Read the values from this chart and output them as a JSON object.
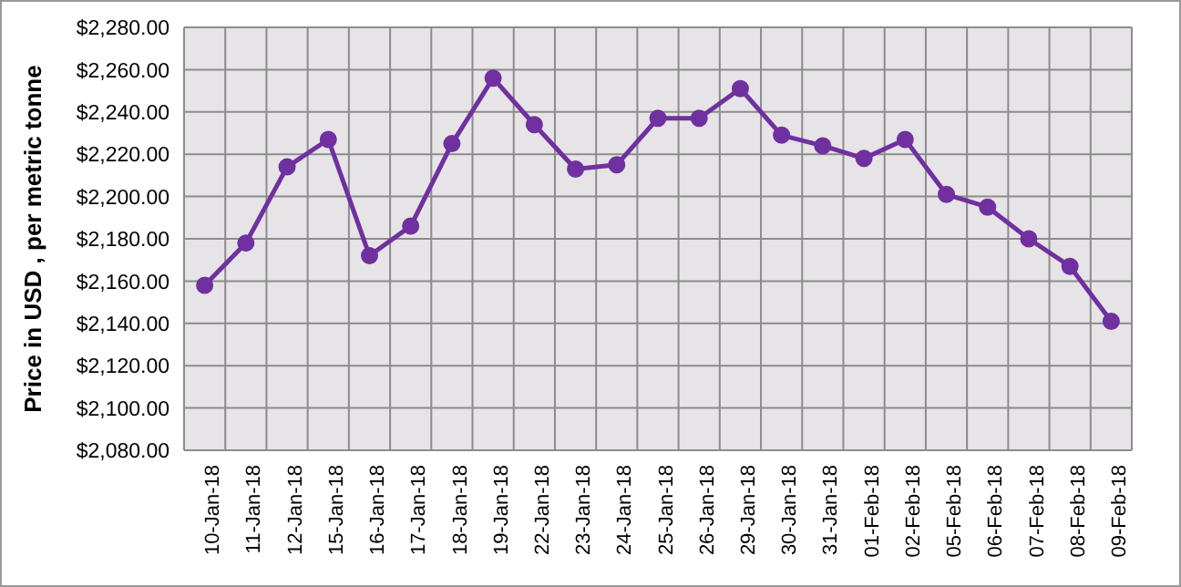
{
  "chart_data": {
    "type": "line",
    "ylabel": "Price in USD , per metric tonne",
    "categories": [
      "10-Jan-18",
      "11-Jan-18",
      "12-Jan-18",
      "15-Jan-18",
      "16-Jan-18",
      "17-Jan-18",
      "18-Jan-18",
      "19-Jan-18",
      "22-Jan-18",
      "23-Jan-18",
      "24-Jan-18",
      "25-Jan-18",
      "26-Jan-18",
      "29-Jan-18",
      "30-Jan-18",
      "31-Jan-18",
      "01-Feb-18",
      "02-Feb-18",
      "05-Feb-18",
      "06-Feb-18",
      "07-Feb-18",
      "08-Feb-18",
      "09-Feb-18"
    ],
    "series": [
      {
        "color": "#7030a0",
        "values": [
          2158,
          2178,
          2214,
          2227,
          2172,
          2186,
          2225,
          2256,
          2234,
          2213,
          2215,
          2237,
          2237,
          2251,
          2229,
          2224,
          2218,
          2227,
          2201,
          2195,
          2180,
          2167,
          2141
        ]
      }
    ],
    "ylim": [
      2080,
      2280
    ],
    "yticks": [
      {
        "value": 2080,
        "label": "$2,080.00"
      },
      {
        "value": 2100,
        "label": "$2,100.00"
      },
      {
        "value": 2120,
        "label": "$2,120.00"
      },
      {
        "value": 2140,
        "label": "$2,140.00"
      },
      {
        "value": 2160,
        "label": "$2,160.00"
      },
      {
        "value": 2180,
        "label": "$2,180.00"
      },
      {
        "value": 2200,
        "label": "$2,200.00"
      },
      {
        "value": 2220,
        "label": "$2,220.00"
      },
      {
        "value": 2240,
        "label": "$2,240.00"
      },
      {
        "value": 2260,
        "label": "$2,260.00"
      },
      {
        "value": 2280,
        "label": "$2,280.00"
      }
    ],
    "grid": true,
    "marker": "circle",
    "line_style": "solid"
  }
}
